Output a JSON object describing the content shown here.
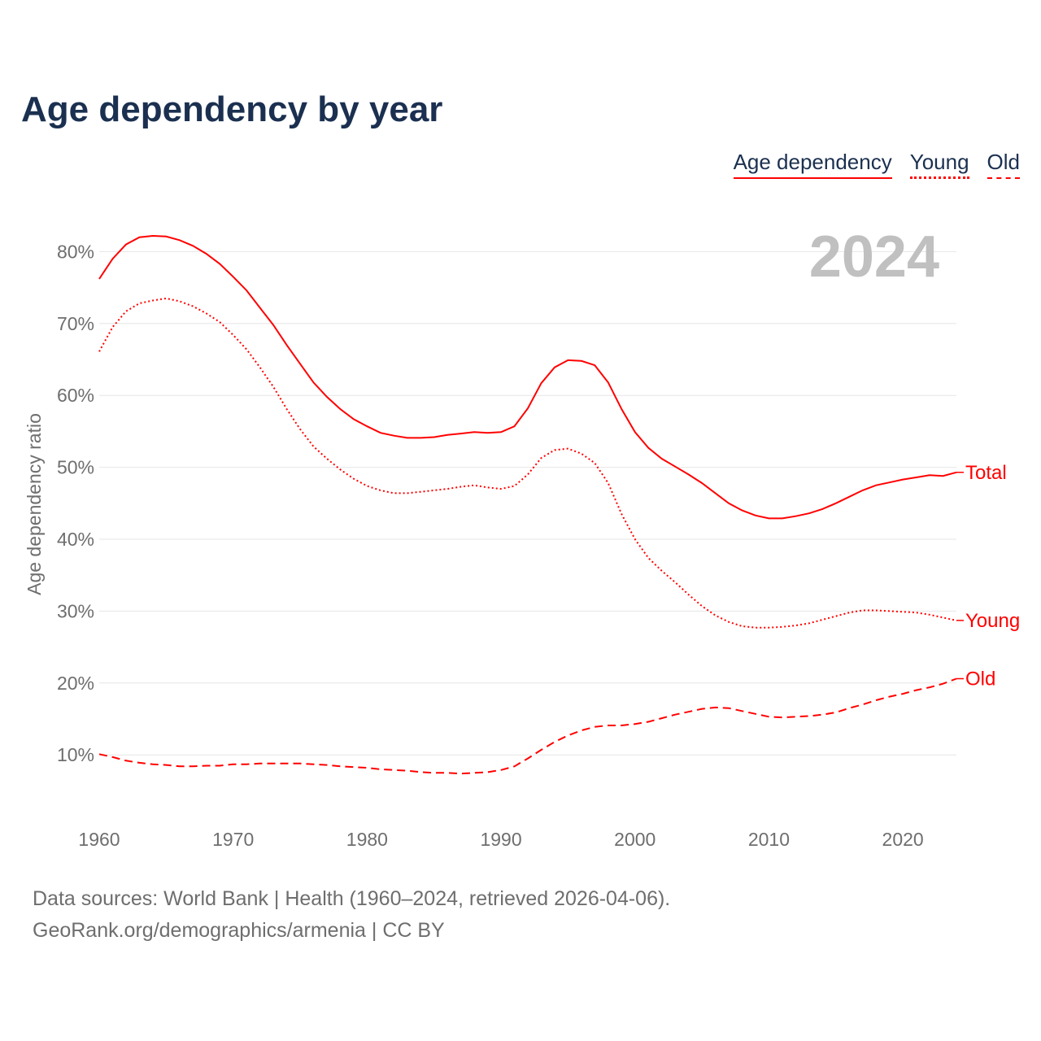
{
  "title": "Age dependency by year",
  "legend": {
    "total": "Age dependency",
    "young": "Young",
    "old": "Old"
  },
  "year_label": "2024",
  "footer": {
    "line1": "Data sources: World Bank | Health (1960–2024, retrieved 2026-04-06).",
    "line2": "GeoRank.org/demographics/armenia | CC BY"
  },
  "colors": {
    "series": "#ff0000",
    "title": "#1b3050",
    "grid": "#e6e6e6",
    "axis_text": "#6e6e6e",
    "year": "#c0c0c0"
  },
  "chart_data": {
    "type": "line",
    "title": "Age dependency by year",
    "xlabel": "",
    "ylabel": "Age dependency ratio",
    "xlim": [
      1960,
      2024
    ],
    "ylim": [
      0,
      85
    ],
    "x_ticks": [
      1960,
      1970,
      1980,
      1990,
      2000,
      2010,
      2020
    ],
    "y_ticks": [
      10,
      20,
      30,
      40,
      50,
      60,
      70,
      80
    ],
    "y_tick_labels": [
      "10%",
      "20%",
      "30%",
      "40%",
      "50%",
      "60%",
      "70%",
      "80%"
    ],
    "grid": true,
    "legend_position": "top-right",
    "x": [
      1960,
      1961,
      1962,
      1963,
      1964,
      1965,
      1966,
      1967,
      1968,
      1969,
      1970,
      1971,
      1972,
      1973,
      1974,
      1975,
      1976,
      1977,
      1978,
      1979,
      1980,
      1981,
      1982,
      1983,
      1984,
      1985,
      1986,
      1987,
      1988,
      1989,
      1990,
      1991,
      1992,
      1993,
      1994,
      1995,
      1996,
      1997,
      1998,
      1999,
      2000,
      2001,
      2002,
      2003,
      2004,
      2005,
      2006,
      2007,
      2008,
      2009,
      2010,
      2011,
      2012,
      2013,
      2014,
      2015,
      2016,
      2017,
      2018,
      2019,
      2020,
      2021,
      2022,
      2023,
      2024
    ],
    "series": [
      {
        "name": "Total",
        "style": "solid",
        "values": [
          76.2,
          79.0,
          81.0,
          82.0,
          82.2,
          82.1,
          81.6,
          80.8,
          79.7,
          78.3,
          76.5,
          74.6,
          72.2,
          69.8,
          67.0,
          64.4,
          61.8,
          59.8,
          58.1,
          56.7,
          55.7,
          54.8,
          54.4,
          54.1,
          54.1,
          54.2,
          54.5,
          54.7,
          54.9,
          54.8,
          54.9,
          55.7,
          58.2,
          61.7,
          63.9,
          64.9,
          64.8,
          64.2,
          61.8,
          58.1,
          54.9,
          52.7,
          51.2,
          50.1,
          49.0,
          47.8,
          46.4,
          45.0,
          44.0,
          43.3,
          42.9,
          42.9,
          43.2,
          43.6,
          44.2,
          45.0,
          45.9,
          46.8,
          47.5,
          47.9,
          48.3,
          48.6,
          48.9,
          48.8,
          49.3
        ]
      },
      {
        "name": "Young",
        "style": "dotted",
        "values": [
          66.1,
          69.5,
          71.7,
          72.8,
          73.2,
          73.5,
          73.1,
          72.4,
          71.4,
          70.2,
          68.4,
          66.4,
          63.9,
          61.2,
          58.1,
          55.3,
          52.9,
          51.2,
          49.7,
          48.4,
          47.4,
          46.8,
          46.4,
          46.4,
          46.6,
          46.8,
          47.0,
          47.3,
          47.5,
          47.2,
          47.0,
          47.4,
          49.0,
          51.3,
          52.4,
          52.6,
          51.9,
          50.6,
          47.8,
          43.5,
          40.0,
          37.4,
          35.6,
          34.0,
          32.3,
          30.7,
          29.4,
          28.5,
          27.9,
          27.7,
          27.7,
          27.8,
          28.0,
          28.3,
          28.8,
          29.3,
          29.8,
          30.1,
          30.1,
          30.0,
          29.9,
          29.8,
          29.5,
          29.1,
          28.7
        ]
      },
      {
        "name": "Old",
        "style": "dashed",
        "values": [
          10.1,
          9.7,
          9.2,
          8.9,
          8.7,
          8.6,
          8.4,
          8.4,
          8.5,
          8.5,
          8.7,
          8.7,
          8.8,
          8.8,
          8.8,
          8.8,
          8.7,
          8.6,
          8.4,
          8.3,
          8.2,
          8.0,
          7.9,
          7.8,
          7.6,
          7.5,
          7.5,
          7.4,
          7.5,
          7.6,
          7.9,
          8.4,
          9.5,
          10.7,
          11.8,
          12.7,
          13.4,
          13.9,
          14.1,
          14.1,
          14.3,
          14.6,
          15.1,
          15.6,
          16.0,
          16.4,
          16.6,
          16.5,
          16.1,
          15.7,
          15.3,
          15.2,
          15.3,
          15.4,
          15.6,
          15.9,
          16.5,
          17.0,
          17.6,
          18.1,
          18.5,
          19.0,
          19.4,
          19.9,
          20.6
        ]
      }
    ]
  }
}
